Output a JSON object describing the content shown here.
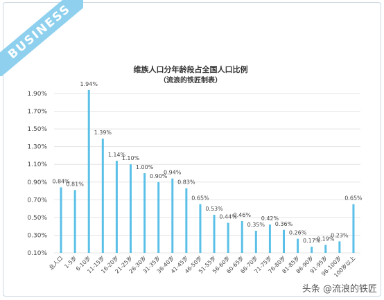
{
  "ribbon_text": "BUSINESS",
  "watermark": "头条 @流浪的铁匠",
  "colors": {
    "bar": "#5bc0e8",
    "ribbon": "#8fd0ee"
  },
  "chart_data": {
    "type": "bar",
    "title": "维族人口分年龄段占全国人口比例",
    "subtitle": "（流浪的铁匠制表）",
    "categories": [
      "总人口",
      "1-5岁",
      "6-10岁",
      "11-15岁",
      "16-20岁",
      "21-25岁",
      "26-30岁",
      "31-35岁",
      "36-40岁",
      "41-45岁",
      "46-50岁",
      "51-55岁",
      "56-60岁",
      "60-65岁",
      "66-70岁",
      "71-75岁",
      "76-80岁",
      "81-85岁",
      "86-90岁",
      "91-95岁",
      "96-100岁",
      "100岁以上"
    ],
    "values": [
      0.84,
      0.81,
      1.94,
      1.39,
      1.14,
      1.1,
      1.0,
      0.9,
      0.94,
      0.83,
      0.65,
      0.53,
      0.44,
      0.46,
      0.35,
      0.42,
      0.36,
      0.26,
      0.17,
      0.19,
      0.23,
      0.65
    ],
    "value_labels": [
      "0.84%",
      "0.81%",
      "1.94%",
      "1.39%",
      "1.14%",
      "1.10%",
      "1.00%",
      "0.90%",
      "0.94%",
      "0.83%",
      "0.65%",
      "0.53%",
      "0.44%",
      "0.46%",
      "0.35%",
      "0.42%",
      "0.36%",
      "0.26%",
      "0.17%",
      "0.19%",
      "0.23%",
      "0.65%"
    ],
    "y_ticks": [
      "0.10%",
      "0.30%",
      "0.50%",
      "0.70%",
      "0.90%",
      "1.10%",
      "1.30%",
      "1.50%",
      "1.70%",
      "1.90%"
    ],
    "y_tick_values": [
      0.1,
      0.3,
      0.5,
      0.7,
      0.9,
      1.1,
      1.3,
      1.5,
      1.7,
      1.9
    ],
    "ylim": [
      0.1,
      1.9
    ],
    "xlabel": "",
    "ylabel": "",
    "grid": true,
    "legend": "none"
  }
}
